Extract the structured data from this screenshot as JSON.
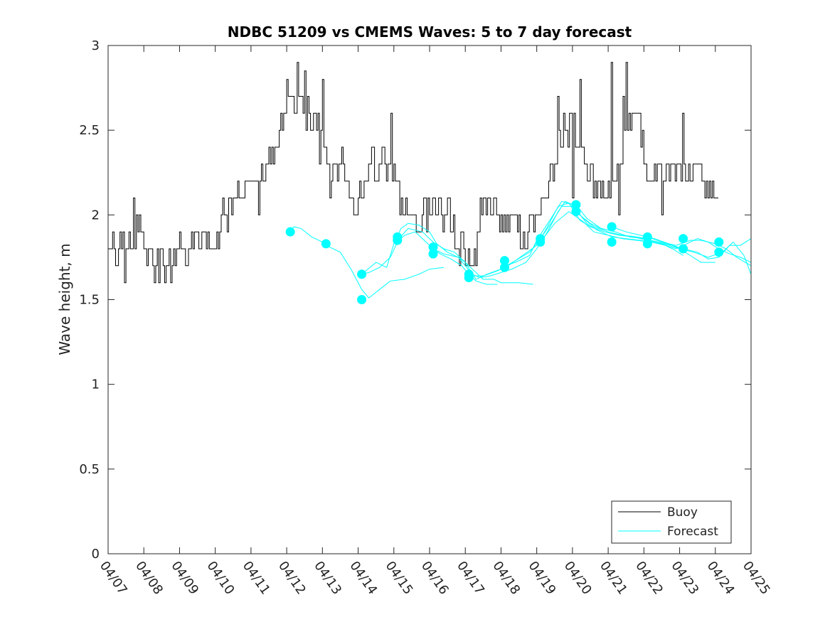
{
  "chart_data": {
    "type": "line",
    "title": "NDBC 51209 vs CMEMS Waves: 5 to 7 day forecast",
    "xlabel": "",
    "ylabel": "Wave height, m",
    "xlim": [
      0,
      18
    ],
    "ylim": [
      0,
      3
    ],
    "x_tick_labels": [
      "04/07",
      "04/08",
      "04/09",
      "04/10",
      "04/11",
      "04/12",
      "04/13",
      "04/14",
      "04/15",
      "04/16",
      "04/17",
      "04/18",
      "04/19",
      "04/20",
      "04/21",
      "04/22",
      "04/23",
      "04/24",
      "04/25"
    ],
    "y_ticks": [
      0,
      0.5,
      1,
      1.5,
      2,
      2.5,
      3
    ],
    "y_tick_labels": [
      "0",
      "0.5",
      "1",
      "1.5",
      "2",
      "2.5",
      "3"
    ],
    "legend": {
      "location": "bottom-right",
      "entries": [
        "Buoy",
        "Forecast"
      ]
    },
    "colors": {
      "buoy": "#000000",
      "forecast": "#00ffff",
      "axes": "#262626"
    },
    "buoy_anchors": [
      [
        0.0,
        1.8
      ],
      [
        0.25,
        1.8
      ],
      [
        0.5,
        1.8
      ],
      [
        0.7,
        1.9
      ],
      [
        0.9,
        1.95
      ],
      [
        1.1,
        1.75
      ],
      [
        1.3,
        1.7
      ],
      [
        1.5,
        1.7
      ],
      [
        1.7,
        1.7
      ],
      [
        1.9,
        1.7
      ],
      [
        2.0,
        1.8
      ],
      [
        2.2,
        1.85
      ],
      [
        2.5,
        1.85
      ],
      [
        2.8,
        1.85
      ],
      [
        3.0,
        1.9
      ],
      [
        3.2,
        1.95
      ],
      [
        3.4,
        2.05
      ],
      [
        3.6,
        2.1
      ],
      [
        3.8,
        2.1
      ],
      [
        4.0,
        2.15
      ],
      [
        4.2,
        2.2
      ],
      [
        4.4,
        2.2
      ],
      [
        4.6,
        2.3
      ],
      [
        4.8,
        2.5
      ],
      [
        5.0,
        2.65
      ],
      [
        5.1,
        2.7
      ],
      [
        5.3,
        2.7
      ],
      [
        5.5,
        2.65
      ],
      [
        5.7,
        2.55
      ],
      [
        5.9,
        2.5
      ],
      [
        6.1,
        2.35
      ],
      [
        6.2,
        2.2
      ],
      [
        6.4,
        2.35
      ],
      [
        6.6,
        2.25
      ],
      [
        6.8,
        2.1
      ],
      [
        7.0,
        2.1
      ],
      [
        7.2,
        2.15
      ],
      [
        7.4,
        2.3
      ],
      [
        7.6,
        2.3
      ],
      [
        7.8,
        2.3
      ],
      [
        8.0,
        2.2
      ],
      [
        8.2,
        2.05
      ],
      [
        8.5,
        2.0
      ],
      [
        8.8,
        2.0
      ],
      [
        9.0,
        2.05
      ],
      [
        9.2,
        2.05
      ],
      [
        9.5,
        1.95
      ],
      [
        9.7,
        1.85
      ],
      [
        10.0,
        1.75
      ],
      [
        10.2,
        1.8
      ],
      [
        10.4,
        2.0
      ],
      [
        10.6,
        2.05
      ],
      [
        10.8,
        2.0
      ],
      [
        11.0,
        2.0
      ],
      [
        11.2,
        1.95
      ],
      [
        11.4,
        1.9
      ],
      [
        11.6,
        1.85
      ],
      [
        11.8,
        1.95
      ],
      [
        12.0,
        1.95
      ],
      [
        12.2,
        2.1
      ],
      [
        12.4,
        2.3
      ],
      [
        12.6,
        2.4
      ],
      [
        12.8,
        2.55
      ],
      [
        13.0,
        2.5
      ],
      [
        13.2,
        2.4
      ],
      [
        13.4,
        2.3
      ],
      [
        13.6,
        2.2
      ],
      [
        13.8,
        2.15
      ],
      [
        14.0,
        2.15
      ],
      [
        14.2,
        2.2
      ],
      [
        14.4,
        2.3
      ],
      [
        14.6,
        2.55
      ],
      [
        14.8,
        2.55
      ],
      [
        15.0,
        2.3
      ],
      [
        15.2,
        2.2
      ],
      [
        15.4,
        2.25
      ],
      [
        15.6,
        2.25
      ],
      [
        15.8,
        2.2
      ],
      [
        16.0,
        2.25
      ],
      [
        16.2,
        2.3
      ],
      [
        16.4,
        2.3
      ],
      [
        16.6,
        2.25
      ],
      [
        16.8,
        2.2
      ],
      [
        17.0,
        2.2
      ],
      [
        17.1,
        2.1
      ]
    ],
    "buoy_peaks": [
      [
        0.7,
        2.1
      ],
      [
        5.0,
        2.8
      ],
      [
        5.3,
        2.9
      ],
      [
        5.5,
        2.85
      ],
      [
        5.9,
        2.3
      ],
      [
        6.0,
        2.8
      ],
      [
        7.9,
        2.6
      ],
      [
        12.6,
        2.7
      ],
      [
        13.2,
        2.8
      ],
      [
        14.1,
        2.9
      ],
      [
        14.5,
        2.9
      ],
      [
        16.1,
        2.6
      ],
      [
        14.4,
        2.7
      ]
    ],
    "buoy_troughs": [
      [
        0.45,
        1.6
      ],
      [
        1.4,
        1.6
      ],
      [
        1.75,
        1.6
      ],
      [
        4.2,
        2.0
      ],
      [
        6.2,
        2.1
      ],
      [
        8.9,
        1.9
      ],
      [
        9.8,
        1.8
      ],
      [
        10.0,
        1.7
      ],
      [
        10.3,
        1.7
      ],
      [
        11.6,
        1.8
      ],
      [
        13.0,
        2.1
      ],
      [
        13.6,
        2.1
      ],
      [
        14.3,
        2.0
      ],
      [
        15.5,
        2.0
      ],
      [
        15.5,
        2.0
      ],
      [
        16.8,
        2.1
      ]
    ],
    "forecast_runs": [
      [
        [
          5.1,
          1.9
        ],
        [
          5.2,
          1.93
        ],
        [
          5.4,
          1.92
        ],
        [
          5.7,
          1.87
        ],
        [
          5.9,
          1.85
        ],
        [
          6.1,
          1.83
        ]
      ],
      [
        [
          6.0,
          1.83
        ],
        [
          6.2,
          1.81
        ],
        [
          6.5,
          1.78
        ],
        [
          6.8,
          1.68
        ],
        [
          7.1,
          1.56
        ],
        [
          7.3,
          1.51
        ],
        [
          7.6,
          1.56
        ],
        [
          7.9,
          1.61
        ],
        [
          8.3,
          1.62
        ],
        [
          8.7,
          1.65
        ],
        [
          9.0,
          1.68
        ],
        [
          9.4,
          1.69
        ]
      ],
      [
        [
          7.1,
          1.65
        ],
        [
          7.3,
          1.66
        ],
        [
          7.6,
          1.69
        ],
        [
          7.9,
          1.75
        ],
        [
          8.1,
          1.84
        ],
        [
          8.3,
          1.88
        ],
        [
          8.6,
          1.9
        ],
        [
          8.9,
          1.84
        ],
        [
          9.1,
          1.8
        ],
        [
          9.3,
          1.77
        ],
        [
          9.6,
          1.74
        ],
        [
          9.9,
          1.7
        ],
        [
          10.1,
          1.65
        ],
        [
          10.3,
          1.61
        ],
        [
          10.6,
          1.59
        ],
        [
          10.9,
          1.59
        ]
      ],
      [
        [
          7.1,
          1.65
        ],
        [
          7.5,
          1.72
        ],
        [
          7.8,
          1.69
        ],
        [
          8.0,
          1.83
        ],
        [
          8.2,
          1.92
        ],
        [
          8.4,
          1.95
        ],
        [
          8.7,
          1.94
        ],
        [
          9.0,
          1.9
        ],
        [
          9.2,
          1.83
        ],
        [
          9.5,
          1.78
        ],
        [
          9.8,
          1.75
        ],
        [
          10.0,
          1.72
        ],
        [
          10.3,
          1.66
        ],
        [
          10.5,
          1.62
        ],
        [
          10.8,
          1.62
        ],
        [
          11.0,
          1.6
        ],
        [
          11.2,
          1.6
        ],
        [
          11.5,
          1.6
        ],
        [
          11.9,
          1.59
        ]
      ],
      [
        [
          8.1,
          1.85
        ],
        [
          8.4,
          1.92
        ],
        [
          8.8,
          1.9
        ],
        [
          9.1,
          1.84
        ],
        [
          9.4,
          1.8
        ],
        [
          9.7,
          1.78
        ],
        [
          10.0,
          1.72
        ],
        [
          10.2,
          1.65
        ],
        [
          10.4,
          1.63
        ],
        [
          10.7,
          1.64
        ],
        [
          11.0,
          1.66
        ],
        [
          11.3,
          1.68
        ],
        [
          11.7,
          1.72
        ],
        [
          12.0,
          1.8
        ],
        [
          12.3,
          1.9
        ],
        [
          12.6,
          2.02
        ],
        [
          12.8,
          2.08
        ],
        [
          13.0,
          2.06
        ],
        [
          13.2,
          2.0
        ],
        [
          13.5,
          1.95
        ],
        [
          13.8,
          1.92
        ],
        [
          14.2,
          1.9
        ]
      ],
      [
        [
          9.1,
          1.8
        ],
        [
          9.4,
          1.77
        ],
        [
          9.8,
          1.75
        ],
        [
          10.0,
          1.7
        ],
        [
          10.3,
          1.62
        ],
        [
          10.6,
          1.65
        ],
        [
          11.0,
          1.68
        ],
        [
          11.4,
          1.73
        ],
        [
          11.8,
          1.78
        ],
        [
          12.1,
          1.86
        ],
        [
          12.4,
          1.95
        ],
        [
          12.7,
          2.05
        ],
        [
          13.0,
          2.05
        ],
        [
          13.3,
          1.98
        ],
        [
          13.6,
          1.93
        ],
        [
          14.0,
          1.9
        ],
        [
          14.4,
          1.88
        ],
        [
          14.8,
          1.87
        ],
        [
          15.1,
          1.86
        ]
      ],
      [
        [
          10.1,
          1.64
        ],
        [
          10.5,
          1.64
        ],
        [
          10.9,
          1.67
        ],
        [
          11.2,
          1.7
        ],
        [
          11.6,
          1.76
        ],
        [
          12.0,
          1.82
        ],
        [
          12.3,
          1.93
        ],
        [
          12.6,
          2.05
        ],
        [
          12.9,
          2.07
        ],
        [
          13.2,
          1.97
        ],
        [
          13.5,
          1.93
        ],
        [
          13.9,
          1.9
        ],
        [
          14.3,
          1.88
        ],
        [
          14.7,
          1.87
        ],
        [
          15.1,
          1.85
        ],
        [
          15.5,
          1.83
        ],
        [
          15.8,
          1.8
        ],
        [
          16.1,
          1.76
        ]
      ],
      [
        [
          11.1,
          1.7
        ],
        [
          11.4,
          1.72
        ],
        [
          11.8,
          1.76
        ],
        [
          12.0,
          1.85
        ],
        [
          12.4,
          1.98
        ],
        [
          12.7,
          2.08
        ],
        [
          13.0,
          2.06
        ],
        [
          13.4,
          1.95
        ],
        [
          13.7,
          1.91
        ],
        [
          14.1,
          1.87
        ],
        [
          14.5,
          1.86
        ],
        [
          14.9,
          1.85
        ],
        [
          15.3,
          1.84
        ],
        [
          15.7,
          1.82
        ],
        [
          16.0,
          1.8
        ],
        [
          16.3,
          1.76
        ],
        [
          16.6,
          1.72
        ],
        [
          17.0,
          1.72
        ]
      ],
      [
        [
          12.1,
          1.84
        ],
        [
          12.5,
          1.95
        ],
        [
          12.9,
          2.02
        ],
        [
          13.3,
          1.96
        ],
        [
          13.6,
          1.9
        ],
        [
          14.0,
          1.88
        ],
        [
          14.4,
          1.86
        ],
        [
          14.8,
          1.85
        ],
        [
          15.2,
          1.84
        ],
        [
          15.6,
          1.82
        ],
        [
          15.9,
          1.8
        ],
        [
          16.2,
          1.83
        ],
        [
          16.5,
          1.86
        ],
        [
          16.8,
          1.84
        ],
        [
          17.1,
          1.8
        ],
        [
          17.4,
          1.77
        ],
        [
          17.7,
          1.75
        ],
        [
          18.0,
          1.72
        ]
      ],
      [
        [
          13.1,
          2.06
        ],
        [
          13.4,
          1.98
        ],
        [
          13.8,
          1.92
        ],
        [
          14.2,
          1.9
        ],
        [
          14.6,
          1.87
        ],
        [
          15.0,
          1.86
        ],
        [
          15.4,
          1.84
        ],
        [
          15.8,
          1.82
        ],
        [
          16.1,
          1.8
        ],
        [
          16.5,
          1.78
        ],
        [
          16.8,
          1.74
        ],
        [
          17.1,
          1.75
        ],
        [
          17.4,
          1.82
        ],
        [
          17.7,
          1.82
        ],
        [
          18.0,
          1.86
        ]
      ],
      [
        [
          14.1,
          1.93
        ],
        [
          14.5,
          1.9
        ],
        [
          14.9,
          1.88
        ],
        [
          15.3,
          1.86
        ],
        [
          15.7,
          1.83
        ],
        [
          16.0,
          1.8
        ],
        [
          16.4,
          1.78
        ],
        [
          16.8,
          1.75
        ],
        [
          17.2,
          1.78
        ],
        [
          17.5,
          1.84
        ],
        [
          17.8,
          1.76
        ],
        [
          18.0,
          1.65
        ]
      ],
      [
        [
          15.1,
          1.87
        ],
        [
          15.5,
          1.84
        ],
        [
          15.9,
          1.82
        ],
        [
          16.3,
          1.85
        ],
        [
          16.6,
          1.85
        ],
        [
          17.0,
          1.83
        ],
        [
          17.3,
          1.8
        ],
        [
          17.6,
          1.75
        ],
        [
          18.0,
          1.7
        ]
      ]
    ],
    "forecast_markers": [
      [
        5.1,
        1.9
      ],
      [
        6.1,
        1.83
      ],
      [
        7.1,
        1.65
      ],
      [
        7.1,
        1.5
      ],
      [
        8.1,
        1.87
      ],
      [
        8.1,
        1.85
      ],
      [
        9.1,
        1.81
      ],
      [
        9.1,
        1.77
      ],
      [
        10.1,
        1.65
      ],
      [
        10.1,
        1.63
      ],
      [
        11.1,
        1.73
      ],
      [
        11.1,
        1.69
      ],
      [
        12.1,
        1.86
      ],
      [
        12.1,
        1.84
      ],
      [
        13.1,
        2.06
      ],
      [
        13.1,
        2.02
      ],
      [
        14.1,
        1.93
      ],
      [
        14.1,
        1.84
      ],
      [
        15.1,
        1.87
      ],
      [
        15.1,
        1.83
      ],
      [
        16.1,
        1.86
      ],
      [
        16.1,
        1.8
      ],
      [
        17.1,
        1.84
      ],
      [
        17.1,
        1.78
      ]
    ]
  }
}
